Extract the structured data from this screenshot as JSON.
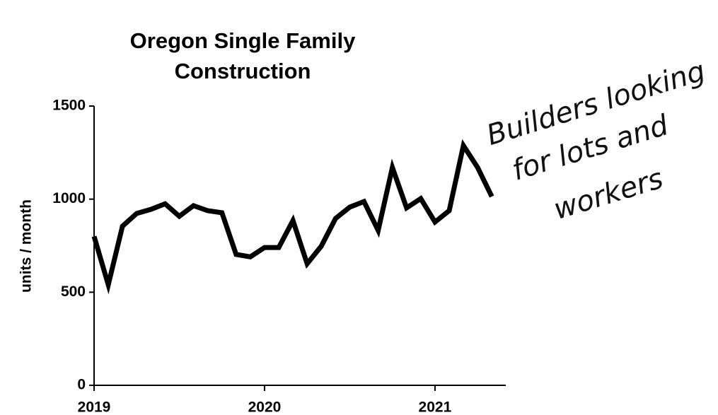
{
  "chart_data": {
    "type": "line",
    "title": [
      "Oregon Single Family",
      "Construction"
    ],
    "y_label": "units / month",
    "annotation": [
      "Builders looking",
      "for lots and",
      "workers"
    ],
    "categories": [
      "2019",
      null,
      null,
      null,
      null,
      null,
      null,
      null,
      null,
      null,
      null,
      null,
      "2020",
      null,
      null,
      null,
      null,
      null,
      null,
      null,
      null,
      null,
      null,
      null,
      "2021",
      null,
      null,
      null,
      null
    ],
    "values": [
      800,
      540,
      855,
      923,
      945,
      975,
      908,
      965,
      938,
      927,
      703,
      690,
      740,
      740,
      885,
      653,
      748,
      896,
      957,
      987,
      832,
      1170,
      953,
      1003,
      877,
      938,
      1288,
      1170,
      1014
    ],
    "color": "#000000",
    "ylim": [
      0,
      1500
    ],
    "yticks": [
      0,
      500,
      1000,
      1500
    ],
    "grid": false
  }
}
